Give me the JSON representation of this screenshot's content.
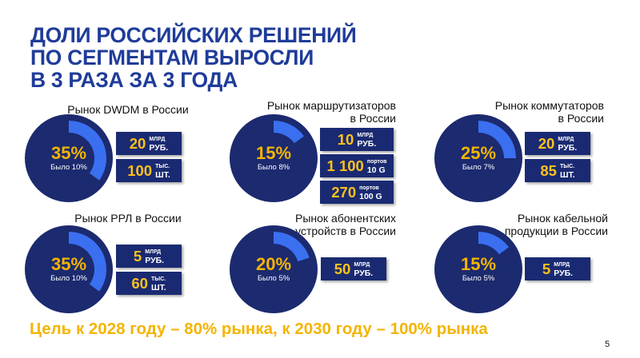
{
  "title": {
    "lines": [
      "ДОЛИ РОССИЙСКИХ РЕШЕНИЙ",
      "ПО СЕГМЕНТАМ ВЫРОСЛИ",
      "В 3 РАЗА ЗА 3 ГОДА"
    ]
  },
  "colors": {
    "title": "#1f3c99",
    "accent": "#f4b400",
    "donut_track": "#1c2a6f",
    "donut_share": "#3a6ff0",
    "box_bg": "#1a2a72"
  },
  "chart_data": [
    {
      "type": "pie",
      "title_lines": [
        "Рынок DWDM в России"
      ],
      "share_pct": 35,
      "share_label": "35%",
      "previous_label": "Было 10%",
      "metrics": [
        {
          "value": "20",
          "unit_top": "МЛРД",
          "unit_bottom": "РУБ."
        },
        {
          "value": "100",
          "unit_top": "ТЫС.",
          "unit_bottom": "ШТ."
        }
      ]
    },
    {
      "type": "pie",
      "title_lines": [
        "Рынок маршрутизаторов",
        "в России"
      ],
      "share_pct": 15,
      "share_label": "15%",
      "previous_label": "Было 8%",
      "metrics": [
        {
          "value": "10",
          "unit_top": "МЛРД",
          "unit_bottom": "РУБ."
        },
        {
          "value": "1 100",
          "unit_top": "портов",
          "unit_bottom": "10 G"
        },
        {
          "value": "270",
          "unit_top": "портов",
          "unit_bottom": "100 G"
        }
      ]
    },
    {
      "type": "pie",
      "title_lines": [
        "Рынок коммутаторов",
        "в России"
      ],
      "share_pct": 25,
      "share_label": "25%",
      "previous_label": "Было 7%",
      "metrics": [
        {
          "value": "20",
          "unit_top": "МЛРД",
          "unit_bottom": "РУБ."
        },
        {
          "value": "85",
          "unit_top": "ТЫС.",
          "unit_bottom": "ШТ."
        }
      ]
    },
    {
      "type": "pie",
      "title_lines": [
        "Рынок РРЛ в России"
      ],
      "share_pct": 35,
      "share_label": "35%",
      "previous_label": "Было 10%",
      "metrics": [
        {
          "value": "5",
          "unit_top": "МЛРД",
          "unit_bottom": "РУБ."
        },
        {
          "value": "60",
          "unit_top": "ТЫС.",
          "unit_bottom": "ШТ."
        }
      ]
    },
    {
      "type": "pie",
      "title_lines": [
        "Рынок абонентских",
        "устройств в России"
      ],
      "share_pct": 20,
      "share_label": "20%",
      "previous_label": "Было 5%",
      "metrics": [
        {
          "value": "50",
          "unit_top": "МЛРД",
          "unit_bottom": "РУБ."
        }
      ]
    },
    {
      "type": "pie",
      "title_lines": [
        "Рынок кабельной",
        "продукции в России"
      ],
      "share_pct": 15,
      "share_label": "15%",
      "previous_label": "Было 5%",
      "metrics": [
        {
          "value": "5",
          "unit_top": "МЛРД",
          "unit_bottom": "РУБ."
        }
      ]
    }
  ],
  "goal": "Цель к 2028 году – 80% рынка, к 2030 году – 100% рынка",
  "page_number": "5"
}
